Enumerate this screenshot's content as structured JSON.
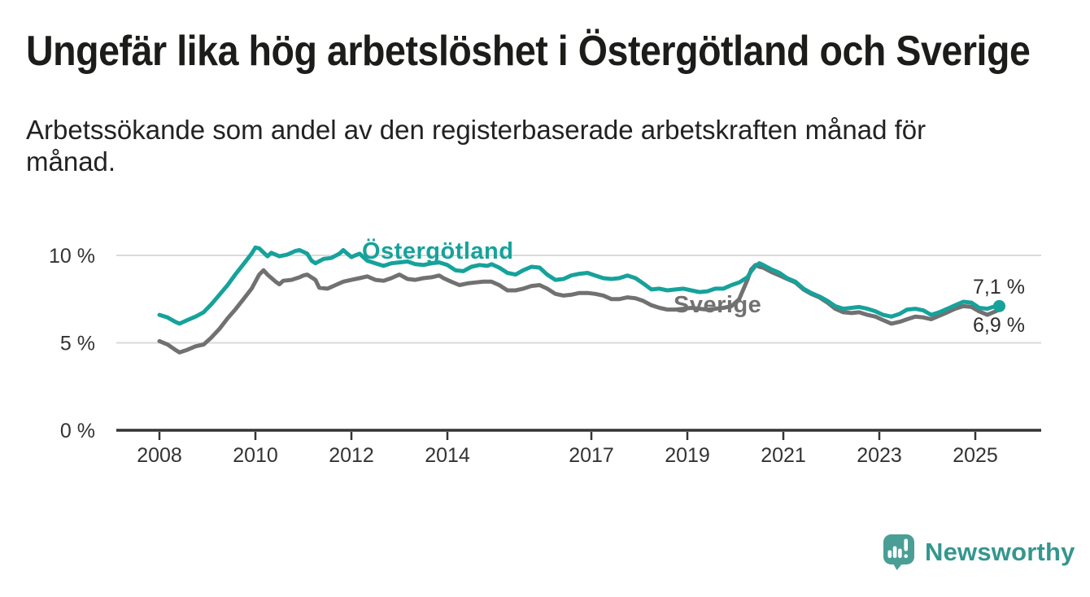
{
  "header": {
    "title": "Ungefär lika hög arbetslöshet i Östergötland och Sverige",
    "subtitle": "Arbetssökande som andel av den registerbaserade arbetskraften månad för månad."
  },
  "chart_data": {
    "type": "line",
    "grid": "horizontal",
    "x": {
      "tick_labels": [
        "2008",
        "2010",
        "2012",
        "2014",
        "2017",
        "2019",
        "2021",
        "2023",
        "2025"
      ],
      "tick_values": [
        2008,
        2010,
        2012,
        2014,
        2017,
        2019,
        2021,
        2023,
        2025
      ],
      "range": [
        2007.1,
        2026.4
      ]
    },
    "y": {
      "tick_labels": [
        "0 %",
        "5 %",
        "10 %"
      ],
      "tick_values": [
        0,
        5,
        10
      ],
      "unit": "%",
      "ylim": [
        0,
        12
      ]
    },
    "series": [
      {
        "name": "Östergötland",
        "color": "#16a29b",
        "end_label": "7,1 %",
        "end_value": 7.1,
        "points": [
          [
            2008.0,
            6.6
          ],
          [
            2008.17,
            6.45
          ],
          [
            2008.33,
            6.2
          ],
          [
            2008.42,
            6.1
          ],
          [
            2008.58,
            6.3
          ],
          [
            2008.75,
            6.5
          ],
          [
            2008.92,
            6.75
          ],
          [
            2009.08,
            7.2
          ],
          [
            2009.25,
            7.75
          ],
          [
            2009.42,
            8.3
          ],
          [
            2009.58,
            8.9
          ],
          [
            2009.75,
            9.5
          ],
          [
            2009.92,
            10.1
          ],
          [
            2010.0,
            10.45
          ],
          [
            2010.08,
            10.4
          ],
          [
            2010.25,
            9.95
          ],
          [
            2010.33,
            10.15
          ],
          [
            2010.5,
            9.95
          ],
          [
            2010.67,
            10.05
          ],
          [
            2010.83,
            10.25
          ],
          [
            2010.92,
            10.3
          ],
          [
            2011.08,
            10.1
          ],
          [
            2011.17,
            9.7
          ],
          [
            2011.25,
            9.55
          ],
          [
            2011.42,
            9.8
          ],
          [
            2011.58,
            9.85
          ],
          [
            2011.75,
            10.1
          ],
          [
            2011.83,
            10.3
          ],
          [
            2012.0,
            9.9
          ],
          [
            2012.08,
            10.0
          ],
          [
            2012.17,
            10.1
          ],
          [
            2012.33,
            9.7
          ],
          [
            2012.5,
            9.55
          ],
          [
            2012.67,
            9.4
          ],
          [
            2012.83,
            9.55
          ],
          [
            2013.0,
            9.6
          ],
          [
            2013.17,
            9.65
          ],
          [
            2013.33,
            9.5
          ],
          [
            2013.5,
            9.45
          ],
          [
            2013.67,
            9.55
          ],
          [
            2013.83,
            9.6
          ],
          [
            2014.0,
            9.45
          ],
          [
            2014.17,
            9.15
          ],
          [
            2014.33,
            9.1
          ],
          [
            2014.5,
            9.35
          ],
          [
            2014.67,
            9.45
          ],
          [
            2014.83,
            9.4
          ],
          [
            2014.92,
            9.5
          ],
          [
            2015.08,
            9.3
          ],
          [
            2015.25,
            9.0
          ],
          [
            2015.42,
            8.9
          ],
          [
            2015.58,
            9.15
          ],
          [
            2015.75,
            9.35
          ],
          [
            2015.92,
            9.3
          ],
          [
            2016.08,
            8.9
          ],
          [
            2016.25,
            8.6
          ],
          [
            2016.42,
            8.65
          ],
          [
            2016.58,
            8.85
          ],
          [
            2016.75,
            8.95
          ],
          [
            2016.92,
            9.0
          ],
          [
            2017.08,
            8.85
          ],
          [
            2017.25,
            8.7
          ],
          [
            2017.42,
            8.65
          ],
          [
            2017.58,
            8.7
          ],
          [
            2017.75,
            8.85
          ],
          [
            2017.92,
            8.7
          ],
          [
            2018.08,
            8.4
          ],
          [
            2018.25,
            8.05
          ],
          [
            2018.42,
            8.1
          ],
          [
            2018.58,
            8.0
          ],
          [
            2018.75,
            8.05
          ],
          [
            2018.92,
            8.1
          ],
          [
            2019.08,
            8.0
          ],
          [
            2019.25,
            7.9
          ],
          [
            2019.42,
            7.95
          ],
          [
            2019.58,
            8.1
          ],
          [
            2019.75,
            8.1
          ],
          [
            2019.92,
            8.3
          ],
          [
            2020.08,
            8.45
          ],
          [
            2020.25,
            8.75
          ],
          [
            2020.33,
            9.1
          ],
          [
            2020.42,
            9.4
          ],
          [
            2020.5,
            9.55
          ],
          [
            2020.58,
            9.45
          ],
          [
            2020.75,
            9.2
          ],
          [
            2020.92,
            9.0
          ],
          [
            2021.08,
            8.7
          ],
          [
            2021.25,
            8.5
          ],
          [
            2021.42,
            8.1
          ],
          [
            2021.58,
            7.85
          ],
          [
            2021.75,
            7.65
          ],
          [
            2021.92,
            7.4
          ],
          [
            2022.08,
            7.1
          ],
          [
            2022.25,
            6.95
          ],
          [
            2022.42,
            7.0
          ],
          [
            2022.58,
            7.05
          ],
          [
            2022.75,
            6.95
          ],
          [
            2022.92,
            6.8
          ],
          [
            2023.08,
            6.6
          ],
          [
            2023.25,
            6.5
          ],
          [
            2023.42,
            6.65
          ],
          [
            2023.58,
            6.9
          ],
          [
            2023.75,
            6.95
          ],
          [
            2023.92,
            6.85
          ],
          [
            2024.08,
            6.6
          ],
          [
            2024.25,
            6.75
          ],
          [
            2024.42,
            6.95
          ],
          [
            2024.58,
            7.15
          ],
          [
            2024.75,
            7.35
          ],
          [
            2024.92,
            7.3
          ],
          [
            2025.08,
            7.0
          ],
          [
            2025.25,
            6.95
          ],
          [
            2025.42,
            7.1
          ],
          [
            2025.5,
            7.1
          ]
        ]
      },
      {
        "name": "Sverige",
        "color": "#717171",
        "end_label": "6,9 %",
        "end_value": 6.9,
        "points": [
          [
            2008.0,
            5.1
          ],
          [
            2008.17,
            4.9
          ],
          [
            2008.33,
            4.6
          ],
          [
            2008.42,
            4.45
          ],
          [
            2008.58,
            4.6
          ],
          [
            2008.75,
            4.8
          ],
          [
            2008.92,
            4.9
          ],
          [
            2009.08,
            5.3
          ],
          [
            2009.25,
            5.8
          ],
          [
            2009.42,
            6.4
          ],
          [
            2009.58,
            6.9
          ],
          [
            2009.75,
            7.5
          ],
          [
            2009.92,
            8.1
          ],
          [
            2010.08,
            8.9
          ],
          [
            2010.17,
            9.15
          ],
          [
            2010.25,
            8.9
          ],
          [
            2010.42,
            8.5
          ],
          [
            2010.5,
            8.35
          ],
          [
            2010.58,
            8.55
          ],
          [
            2010.75,
            8.6
          ],
          [
            2010.92,
            8.75
          ],
          [
            2011.0,
            8.85
          ],
          [
            2011.08,
            8.9
          ],
          [
            2011.25,
            8.6
          ],
          [
            2011.33,
            8.15
          ],
          [
            2011.5,
            8.1
          ],
          [
            2011.67,
            8.3
          ],
          [
            2011.83,
            8.5
          ],
          [
            2012.0,
            8.6
          ],
          [
            2012.17,
            8.7
          ],
          [
            2012.33,
            8.8
          ],
          [
            2012.5,
            8.6
          ],
          [
            2012.67,
            8.55
          ],
          [
            2012.83,
            8.7
          ],
          [
            2013.0,
            8.9
          ],
          [
            2013.17,
            8.65
          ],
          [
            2013.33,
            8.6
          ],
          [
            2013.5,
            8.7
          ],
          [
            2013.67,
            8.75
          ],
          [
            2013.83,
            8.85
          ],
          [
            2013.92,
            8.7
          ],
          [
            2014.08,
            8.5
          ],
          [
            2014.25,
            8.3
          ],
          [
            2014.42,
            8.4
          ],
          [
            2014.58,
            8.45
          ],
          [
            2014.75,
            8.5
          ],
          [
            2014.92,
            8.5
          ],
          [
            2015.08,
            8.3
          ],
          [
            2015.25,
            8.0
          ],
          [
            2015.42,
            8.0
          ],
          [
            2015.58,
            8.1
          ],
          [
            2015.75,
            8.25
          ],
          [
            2015.92,
            8.3
          ],
          [
            2016.08,
            8.1
          ],
          [
            2016.25,
            7.8
          ],
          [
            2016.42,
            7.7
          ],
          [
            2016.58,
            7.75
          ],
          [
            2016.75,
            7.85
          ],
          [
            2016.92,
            7.85
          ],
          [
            2017.08,
            7.8
          ],
          [
            2017.25,
            7.7
          ],
          [
            2017.42,
            7.5
          ],
          [
            2017.58,
            7.5
          ],
          [
            2017.75,
            7.6
          ],
          [
            2017.92,
            7.55
          ],
          [
            2018.08,
            7.4
          ],
          [
            2018.25,
            7.15
          ],
          [
            2018.42,
            7.0
          ],
          [
            2018.58,
            6.9
          ],
          [
            2018.75,
            6.9
          ],
          [
            2018.92,
            6.95
          ],
          [
            2019.08,
            7.0
          ],
          [
            2019.25,
            6.95
          ],
          [
            2019.42,
            6.9
          ],
          [
            2019.58,
            6.95
          ],
          [
            2019.75,
            7.0
          ],
          [
            2019.92,
            7.1
          ],
          [
            2020.08,
            7.5
          ],
          [
            2020.25,
            8.6
          ],
          [
            2020.33,
            9.2
          ],
          [
            2020.42,
            9.45
          ],
          [
            2020.5,
            9.35
          ],
          [
            2020.58,
            9.3
          ],
          [
            2020.75,
            9.05
          ],
          [
            2020.92,
            8.85
          ],
          [
            2021.08,
            8.65
          ],
          [
            2021.25,
            8.45
          ],
          [
            2021.42,
            8.05
          ],
          [
            2021.58,
            7.8
          ],
          [
            2021.75,
            7.6
          ],
          [
            2021.92,
            7.3
          ],
          [
            2022.08,
            6.95
          ],
          [
            2022.25,
            6.75
          ],
          [
            2022.42,
            6.7
          ],
          [
            2022.58,
            6.75
          ],
          [
            2022.75,
            6.6
          ],
          [
            2022.92,
            6.5
          ],
          [
            2023.08,
            6.3
          ],
          [
            2023.25,
            6.1
          ],
          [
            2023.42,
            6.2
          ],
          [
            2023.58,
            6.35
          ],
          [
            2023.75,
            6.5
          ],
          [
            2023.92,
            6.45
          ],
          [
            2024.08,
            6.35
          ],
          [
            2024.25,
            6.55
          ],
          [
            2024.42,
            6.75
          ],
          [
            2024.58,
            6.95
          ],
          [
            2024.75,
            7.1
          ],
          [
            2024.92,
            7.05
          ],
          [
            2025.08,
            6.8
          ],
          [
            2025.25,
            6.6
          ],
          [
            2025.42,
            6.8
          ],
          [
            2025.5,
            6.9
          ]
        ]
      }
    ]
  },
  "branding": {
    "name": "Newsworthy",
    "icon": "newsworthy-bubble-bar-chart-icon",
    "icon_color": "#4a9e96",
    "text_color": "#35968e"
  },
  "colors": {
    "background": "#ffffff",
    "title_text": "#1c1c1a",
    "axis_text": "#333333",
    "axis_line": "#343434",
    "gridline": "#dadada",
    "ostergotland_teal": "#16a29b",
    "sverige_gray": "#717171"
  }
}
